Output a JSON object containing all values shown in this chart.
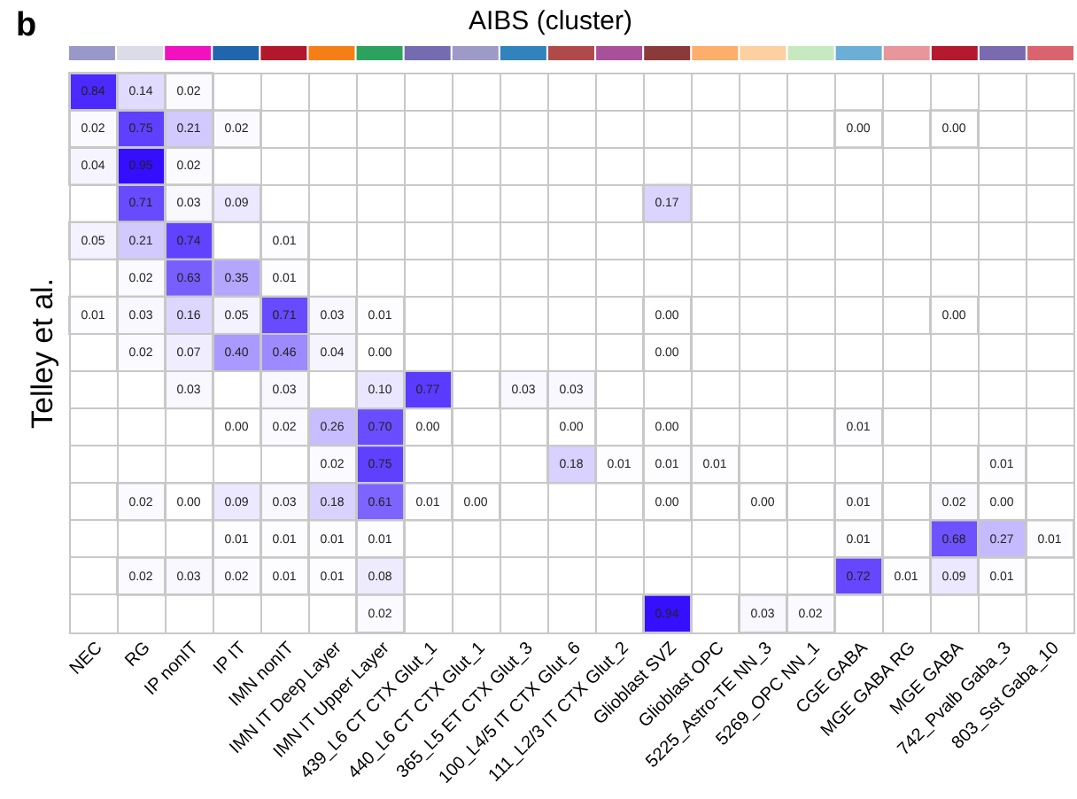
{
  "chart_data": {
    "type": "heatmap",
    "title": "AIBS (cluster)",
    "ylabel": "Telley et al.",
    "annotations": [
      "b"
    ],
    "data_labels": true,
    "categories": [
      "NEC",
      "RG",
      "IP nonIT",
      "IP IT",
      "IMN nonIT",
      "IMN IT Deep Layer",
      "IMN IT Upper Layer",
      "439_L6 CT CTX Glut_1",
      "440_L6 CT CTX Glut_1",
      "365_L5 ET CTX Glut_3",
      "100_L4/5 IT CTX Glut_6",
      "111_L2/3 IT CTX Glut_2",
      "Glioblast SVZ",
      "Glioblast OPC",
      "5225_Astro-TE NN_3",
      "5269_OPC NN_1",
      "CGE GABA",
      "MGE GABA RG",
      "MGE GABA",
      "742_Pvalb Gaba_3",
      "803_Sst Gaba_10"
    ],
    "colors": [
      "#9a98c8",
      "#dcdce8",
      "#f012be",
      "#2166ac",
      "#b2182b",
      "#f57f17",
      "#2ca25f",
      "#756bb1",
      "#9e9ac8",
      "#3182bd",
      "#b04a4a",
      "#a8509a",
      "#8b3a3a",
      "#fdae6b",
      "#fdd0a2",
      "#c7e9c0",
      "#6baed6",
      "#e7969c",
      "#b5192e",
      "#7a6bb0",
      "#d9646e"
    ],
    "y_categories": [
      null,
      null,
      null,
      null,
      null,
      null,
      null,
      null,
      null,
      null,
      null,
      null,
      null,
      null,
      null
    ],
    "cell_labels": [
      [
        "0.84",
        "0.14",
        "0.02",
        null,
        null,
        null,
        null,
        null,
        null,
        null,
        null,
        null,
        null,
        null,
        null,
        null,
        null,
        null,
        null,
        null,
        null
      ],
      [
        "0.02",
        "0.75",
        "0.21",
        "0.02",
        null,
        null,
        null,
        null,
        null,
        null,
        null,
        null,
        null,
        null,
        null,
        null,
        "0.00",
        null,
        "0.00",
        null,
        null
      ],
      [
        "0.04",
        "0.95",
        "0.02",
        null,
        null,
        null,
        null,
        null,
        null,
        null,
        null,
        null,
        null,
        null,
        null,
        null,
        null,
        null,
        null,
        null,
        null
      ],
      [
        null,
        "0.71",
        "0.03",
        "0.09",
        null,
        null,
        null,
        null,
        null,
        null,
        null,
        null,
        "0.17",
        null,
        null,
        null,
        null,
        null,
        null,
        null,
        null
      ],
      [
        "0.05",
        "0.21",
        "0.74",
        null,
        "0.01",
        null,
        null,
        null,
        null,
        null,
        null,
        null,
        null,
        null,
        null,
        null,
        null,
        null,
        null,
        null,
        null
      ],
      [
        null,
        "0.02",
        "0.63",
        "0.35",
        "0.01",
        null,
        null,
        null,
        null,
        null,
        null,
        null,
        null,
        null,
        null,
        null,
        null,
        null,
        null,
        null,
        null
      ],
      [
        "0.01",
        "0.03",
        "0.16",
        "0.05",
        "0.71",
        "0.03",
        "0.01",
        null,
        null,
        null,
        null,
        null,
        "0.00",
        null,
        null,
        null,
        null,
        null,
        "0.00",
        null,
        null
      ],
      [
        null,
        "0.02",
        "0.07",
        "0.40",
        "0.46",
        "0.04",
        "0.00",
        null,
        null,
        null,
        null,
        null,
        "0.00",
        null,
        null,
        null,
        null,
        null,
        null,
        null,
        null
      ],
      [
        null,
        null,
        "0.03",
        null,
        "0.03",
        null,
        "0.10",
        "0.77",
        null,
        "0.03",
        "0.03",
        null,
        null,
        null,
        null,
        null,
        null,
        null,
        null,
        null,
        null
      ],
      [
        null,
        null,
        null,
        "0.00",
        "0.02",
        "0.26",
        "0.70",
        "0.00",
        null,
        null,
        "0.00",
        null,
        "0.00",
        null,
        null,
        null,
        "0.01",
        null,
        null,
        null,
        null
      ],
      [
        null,
        null,
        null,
        null,
        null,
        "0.02",
        "0.75",
        null,
        null,
        null,
        "0.18",
        "0.01",
        "0.01",
        "0.01",
        null,
        null,
        null,
        null,
        null,
        "0.01",
        null
      ],
      [
        null,
        "0.02",
        "0.00",
        "0.09",
        "0.03",
        "0.18",
        "0.61",
        "0.01",
        "0.00",
        null,
        null,
        null,
        "0.00",
        null,
        "0.00",
        null,
        "0.01",
        null,
        "0.02",
        "0.00",
        null
      ],
      [
        null,
        null,
        null,
        "0.01",
        "0.01",
        "0.01",
        "0.01",
        null,
        null,
        null,
        null,
        null,
        null,
        null,
        null,
        null,
        "0.01",
        null,
        "0.68",
        "0.27",
        "0.01"
      ],
      [
        null,
        "0.02",
        "0.03",
        "0.02",
        "0.01",
        "0.01",
        "0.08",
        null,
        null,
        null,
        null,
        null,
        null,
        null,
        null,
        null,
        "0.72",
        "0.01",
        "0.09",
        "0.01",
        null
      ],
      [
        null,
        null,
        null,
        null,
        null,
        null,
        "0.02",
        null,
        null,
        null,
        null,
        null,
        "0.94",
        null,
        "0.03",
        "0.02",
        null,
        null,
        null,
        null,
        null
      ]
    ],
    "cells": [
      [
        0.84,
        0.14,
        0.02,
        null,
        null,
        null,
        null,
        null,
        null,
        null,
        null,
        null,
        null,
        null,
        null,
        null,
        null,
        null,
        null,
        null,
        null
      ],
      [
        0.02,
        0.75,
        0.21,
        0.02,
        null,
        null,
        null,
        null,
        null,
        null,
        null,
        null,
        null,
        null,
        null,
        null,
        0.0,
        null,
        0.0,
        null,
        null
      ],
      [
        0.04,
        0.95,
        0.02,
        null,
        null,
        null,
        null,
        null,
        null,
        null,
        null,
        null,
        null,
        null,
        null,
        null,
        null,
        null,
        null,
        null,
        null
      ],
      [
        null,
        0.71,
        0.03,
        0.09,
        null,
        null,
        null,
        null,
        null,
        null,
        null,
        null,
        0.17,
        null,
        null,
        null,
        null,
        null,
        null,
        null,
        null
      ],
      [
        0.05,
        0.21,
        0.74,
        null,
        0.01,
        null,
        null,
        null,
        null,
        null,
        null,
        null,
        null,
        null,
        null,
        null,
        null,
        null,
        null,
        null,
        null
      ],
      [
        null,
        0.02,
        0.63,
        0.35,
        0.01,
        null,
        null,
        null,
        null,
        null,
        null,
        null,
        null,
        null,
        null,
        null,
        null,
        null,
        null,
        null,
        null
      ],
      [
        0.01,
        0.03,
        0.16,
        0.05,
        0.71,
        0.03,
        0.01,
        null,
        null,
        null,
        null,
        null,
        0.0,
        null,
        null,
        null,
        null,
        null,
        0.0,
        null,
        null
      ],
      [
        null,
        0.02,
        0.07,
        0.4,
        0.46,
        0.04,
        0.0,
        null,
        null,
        null,
        null,
        null,
        0.0,
        null,
        null,
        null,
        null,
        null,
        null,
        null,
        null
      ],
      [
        null,
        null,
        0.03,
        null,
        0.03,
        null,
        0.1,
        0.77,
        null,
        0.03,
        0.03,
        null,
        null,
        null,
        null,
        null,
        null,
        null,
        null,
        null,
        null
      ],
      [
        null,
        null,
        null,
        0.0,
        0.02,
        0.26,
        0.7,
        0.0,
        null,
        null,
        0.0,
        null,
        0.0,
        null,
        null,
        null,
        0.01,
        null,
        null,
        null,
        null
      ],
      [
        null,
        null,
        null,
        null,
        null,
        0.02,
        0.75,
        null,
        null,
        null,
        0.18,
        0.01,
        0.01,
        0.01,
        null,
        null,
        null,
        null,
        null,
        0.01,
        null
      ],
      [
        null,
        0.02,
        0.0,
        0.09,
        0.03,
        0.18,
        0.61,
        0.01,
        0.0,
        null,
        null,
        null,
        0.0,
        null,
        0.0,
        null,
        0.01,
        null,
        0.02,
        0.0,
        null
      ],
      [
        null,
        null,
        null,
        0.01,
        0.01,
        0.01,
        0.01,
        null,
        null,
        null,
        null,
        null,
        null,
        null,
        null,
        null,
        0.01,
        null,
        0.68,
        0.27,
        0.01
      ],
      [
        null,
        0.02,
        0.03,
        0.02,
        0.01,
        0.01,
        0.08,
        null,
        null,
        null,
        null,
        null,
        null,
        null,
        null,
        null,
        0.72,
        0.01,
        0.09,
        0.01,
        null
      ],
      [
        null,
        null,
        null,
        null,
        null,
        null,
        0.02,
        null,
        null,
        null,
        null,
        null,
        0.94,
        null,
        0.03,
        0.02,
        null,
        null,
        null,
        null,
        null
      ]
    ]
  }
}
